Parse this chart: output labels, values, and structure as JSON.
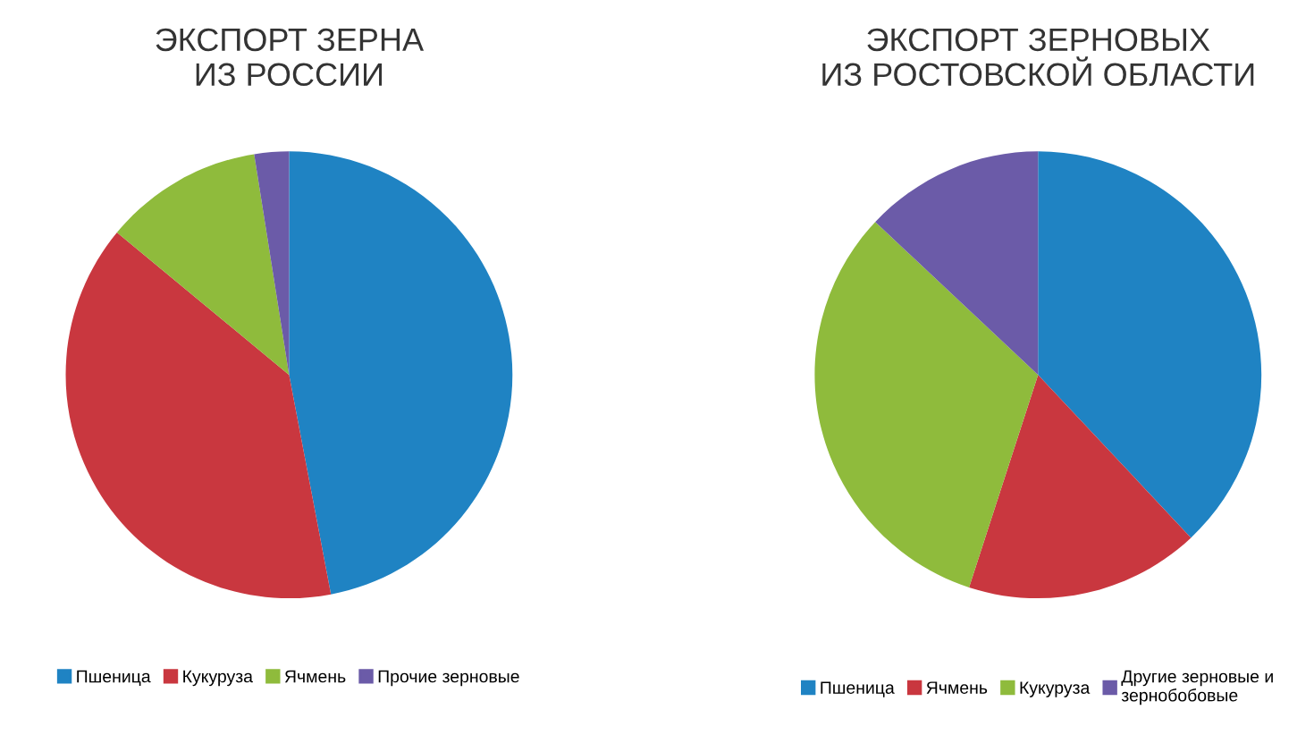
{
  "chart_data": [
    {
      "type": "pie",
      "title": "ЭКСПОРТ ЗЕРНА\nИЗ РОССИИ",
      "categories": [
        "Пшеница",
        "Кукуруза",
        "Ячмень",
        "Прочие зерновые"
      ],
      "values": [
        47,
        39,
        11.5,
        2.5
      ],
      "colors": [
        "#1f83c3",
        "#c9373f",
        "#8fbb3c",
        "#6b5ba8"
      ],
      "legend": "bottom"
    },
    {
      "type": "pie",
      "title": "ЭКСПОРТ ЗЕРНОВЫХ\nИЗ РОСТОВСКОЙ ОБЛАСТИ",
      "categories": [
        "Пшеница",
        "Ячмень",
        "Кукуруза",
        "Другие зерновые и\nзернобобовые"
      ],
      "values": [
        38,
        17,
        32,
        13
      ],
      "colors": [
        "#1f83c3",
        "#c9373f",
        "#8fbb3c",
        "#6b5ba8"
      ],
      "legend": "bottom"
    }
  ]
}
